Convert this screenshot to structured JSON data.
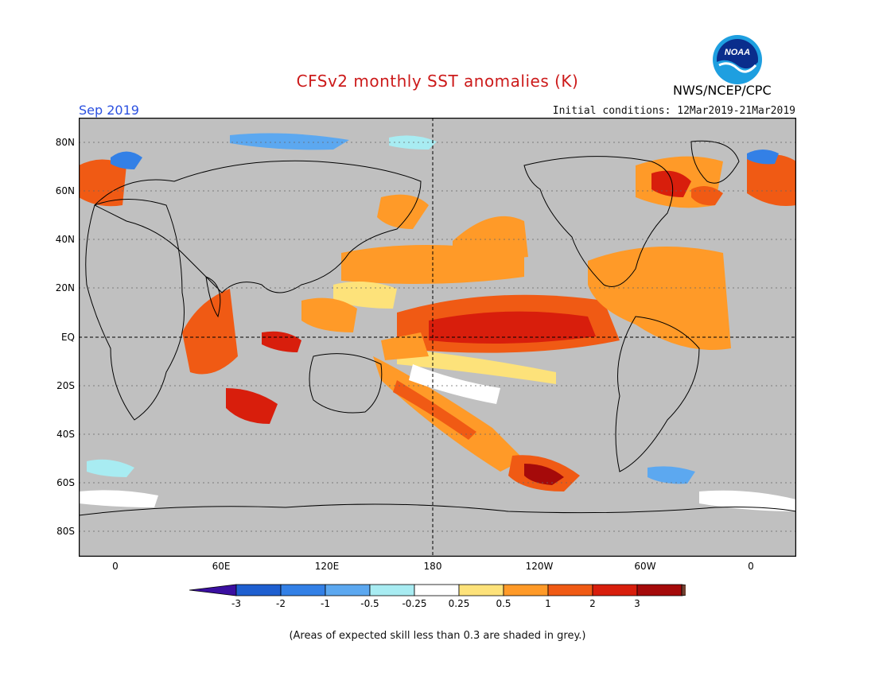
{
  "title": "CFSv2 monthly SST anomalies (K)",
  "forecast_month": "Sep 2019",
  "initial_conditions": "Initial conditions: 12Mar2019-21Mar2019",
  "agency": "NWS/NCEP/CPC",
  "logo_text": "NOAA",
  "y_axis_labels": [
    "80N",
    "60N",
    "40N",
    "20N",
    "EQ",
    "20S",
    "40S",
    "60S",
    "80S"
  ],
  "x_axis_labels": [
    "0",
    "60E",
    "120E",
    "180",
    "120W",
    "60W",
    "0"
  ],
  "colorbar": {
    "labels": [
      "-3",
      "-2",
      "-1",
      "-0.5",
      "-0.25",
      "0.25",
      "0.5",
      "1",
      "2",
      "3"
    ],
    "colors": [
      "#3a0fa0",
      "#1e5fd0",
      "#3380e6",
      "#5ca8f0",
      "#a8ecf2",
      "#ffffff",
      "#fde27a",
      "#ff9a28",
      "#f05a14",
      "#d81e0c",
      "#a50a0a",
      "#704030"
    ]
  },
  "note": "(Areas of expected skill less than 0.3 are shaded in grey.)",
  "colors": {
    "grey": "#c0c0c0",
    "title": "#cc1a1a",
    "month": "#2b50e0"
  }
}
